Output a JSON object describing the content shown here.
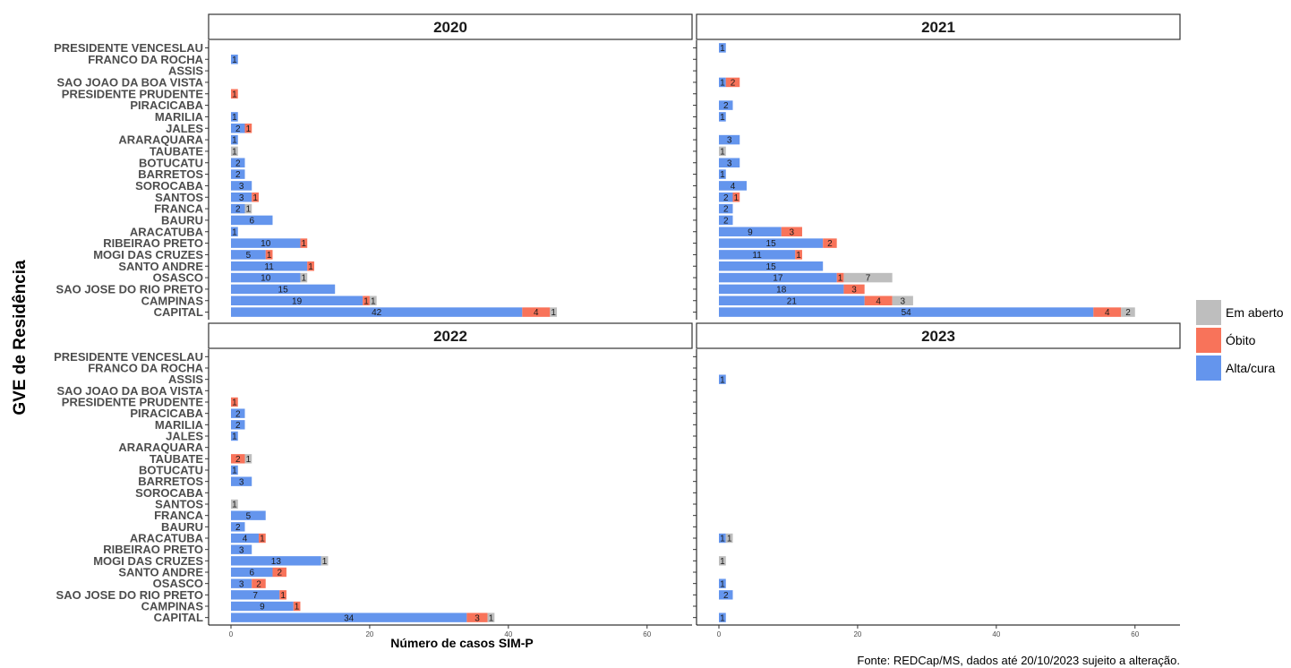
{
  "chart_data": {
    "type": "bar",
    "orientation": "horizontal",
    "stacked": true,
    "xlabel": "Número de casos SIM-P",
    "ylabel": "GVE de Residência",
    "caption": "Fonte: REDCap/MS, dados até 20/10/2023 sujeito a alteração.",
    "xlim": [
      0,
      63
    ],
    "xticks": [
      0,
      20,
      40,
      60
    ],
    "grid": false,
    "legend_position": "right",
    "legend": [
      {
        "name": "Em aberto",
        "color": "#bebebe"
      },
      {
        "name": "Óbito",
        "color": "#f8735a"
      },
      {
        "name": "Alta/cura",
        "color": "#6495ed"
      }
    ],
    "categories": [
      "PRESIDENTE VENCESLAU",
      "FRANCO DA ROCHA",
      "ASSIS",
      "SAO JOAO DA BOA VISTA",
      "PRESIDENTE PRUDENTE",
      "PIRACICABA",
      "MARILIA",
      "JALES",
      "ARARAQUARA",
      "TAUBATE",
      "BOTUCATU",
      "BARRETOS",
      "SOROCABA",
      "SANTOS",
      "FRANCA",
      "BAURU",
      "ARACATUBA",
      "RIBEIRAO PRETO",
      "MOGI DAS CRUZES",
      "SANTO ANDRE",
      "OSASCO",
      "SAO JOSE DO RIO PRETO",
      "CAMPINAS",
      "CAPITAL"
    ],
    "panels": [
      {
        "title": "2020",
        "alta": [
          0,
          1,
          0,
          0,
          0,
          0,
          1,
          2,
          1,
          0,
          2,
          2,
          3,
          3,
          2,
          6,
          1,
          10,
          5,
          11,
          10,
          15,
          19,
          42
        ],
        "obito": [
          0,
          0,
          0,
          0,
          1,
          0,
          0,
          1,
          0,
          0,
          0,
          0,
          0,
          1,
          0,
          0,
          0,
          1,
          1,
          1,
          0,
          0,
          1,
          4
        ],
        "aberto": [
          0,
          0,
          0,
          0,
          0,
          0,
          0,
          0,
          0,
          1,
          0,
          0,
          0,
          0,
          1,
          0,
          0,
          0,
          0,
          0,
          1,
          0,
          1,
          1
        ]
      },
      {
        "title": "2021",
        "alta": [
          1,
          0,
          0,
          1,
          0,
          2,
          1,
          0,
          3,
          0,
          3,
          1,
          4,
          2,
          2,
          2,
          9,
          15,
          11,
          15,
          17,
          18,
          21,
          54
        ],
        "obito": [
          0,
          0,
          0,
          2,
          0,
          0,
          0,
          0,
          0,
          0,
          0,
          0,
          0,
          1,
          0,
          0,
          3,
          2,
          1,
          0,
          1,
          3,
          4,
          4
        ],
        "aberto": [
          0,
          0,
          0,
          0,
          0,
          0,
          0,
          0,
          0,
          1,
          0,
          0,
          0,
          0,
          0,
          0,
          0,
          0,
          0,
          0,
          7,
          0,
          3,
          2
        ]
      },
      {
        "title": "2022",
        "alta": [
          0,
          0,
          0,
          0,
          0,
          2,
          2,
          1,
          0,
          0,
          1,
          3,
          0,
          0,
          5,
          2,
          4,
          3,
          13,
          6,
          3,
          7,
          9,
          34
        ],
        "obito": [
          0,
          0,
          0,
          0,
          1,
          0,
          0,
          0,
          0,
          2,
          0,
          0,
          0,
          0,
          0,
          0,
          1,
          0,
          0,
          2,
          2,
          1,
          1,
          3
        ],
        "aberto": [
          0,
          0,
          0,
          0,
          0,
          0,
          0,
          0,
          0,
          1,
          0,
          0,
          0,
          1,
          0,
          0,
          0,
          0,
          1,
          0,
          0,
          0,
          0,
          1
        ]
      },
      {
        "title": "2023",
        "alta": [
          0,
          0,
          1,
          0,
          0,
          0,
          0,
          0,
          0,
          0,
          0,
          0,
          0,
          0,
          0,
          0,
          1,
          0,
          0,
          0,
          1,
          2,
          0,
          1
        ],
        "obito": [
          0,
          0,
          0,
          0,
          0,
          0,
          0,
          0,
          0,
          0,
          0,
          0,
          0,
          0,
          0,
          0,
          0,
          0,
          0,
          0,
          0,
          0,
          0,
          0
        ],
        "aberto": [
          0,
          0,
          0,
          0,
          0,
          0,
          0,
          0,
          0,
          0,
          0,
          0,
          0,
          0,
          0,
          0,
          1,
          0,
          1,
          0,
          0,
          0,
          0,
          0
        ]
      }
    ]
  }
}
